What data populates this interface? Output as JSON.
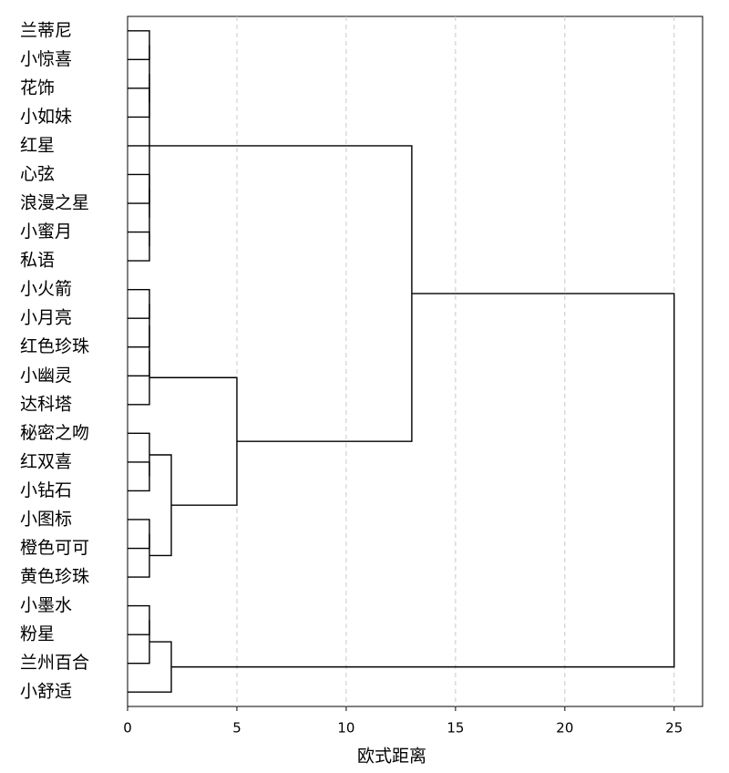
{
  "chart_data": {
    "type": "dendrogram",
    "xlabel": "欧式距离",
    "leaves": [
      "兰蒂尼",
      "小惊喜",
      "花饰",
      "小如妹",
      "红星",
      "心弦",
      "浪漫之星",
      "小蜜月",
      "私语",
      "小火箭",
      "小月亮",
      "红色珍珠",
      "小幽灵",
      "达科塔",
      "秘密之吻",
      "红双喜",
      "小钻石",
      "小图标",
      "橙色可可",
      "黄色珍珠",
      "小墨水",
      "粉星",
      "兰州百合",
      "小舒适"
    ],
    "merges": [
      [
        0,
        1,
        1
      ],
      [
        2,
        3,
        1
      ],
      [
        24,
        25,
        1
      ],
      [
        5,
        6,
        1
      ],
      [
        7,
        8,
        1
      ],
      [
        27,
        28,
        1
      ],
      [
        26,
        29,
        1
      ],
      [
        30,
        4,
        1
      ],
      [
        9,
        10,
        1
      ],
      [
        32,
        11,
        1
      ],
      [
        33,
        12,
        1
      ],
      [
        34,
        13,
        1
      ],
      [
        15,
        16,
        1
      ],
      [
        36,
        14,
        1
      ],
      [
        17,
        18,
        1
      ],
      [
        38,
        19,
        1
      ],
      [
        37,
        39,
        2
      ],
      [
        35,
        40,
        5
      ],
      [
        31,
        41,
        13
      ],
      [
        20,
        21,
        1
      ],
      [
        43,
        22,
        1
      ],
      [
        44,
        23,
        2
      ],
      [
        42,
        45,
        25
      ]
    ],
    "xlim": [
      0,
      26.3
    ],
    "xticks": [
      0,
      5,
      10,
      15,
      20,
      25
    ],
    "grid": true,
    "color": "#000000"
  }
}
